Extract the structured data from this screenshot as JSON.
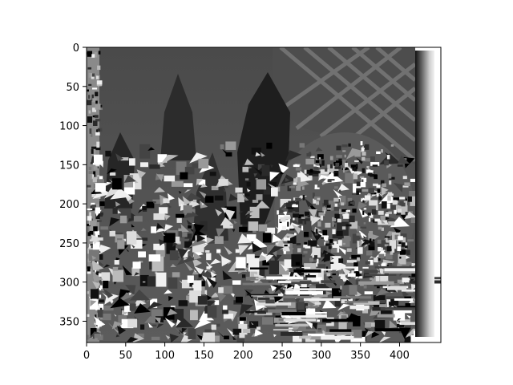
{
  "figure": {
    "kind": "grayscale disparity-style image displayed with axes",
    "colormap": "gray",
    "axes": {
      "x_ticks": [
        "0",
        "50",
        "100",
        "150",
        "200",
        "250",
        "300",
        "350",
        "400"
      ],
      "y_ticks": [
        "0",
        "50",
        "100",
        "150",
        "200",
        "250",
        "300",
        "350"
      ],
      "x_range": [
        0,
        450
      ],
      "y_range": [
        0,
        375
      ],
      "y_inverted": true
    },
    "colors": {
      "axis": "#000000",
      "background": "#ffffff",
      "sky": "#555555",
      "cone_dark": "#222222",
      "noise_light": "#e6e6e6"
    }
  }
}
